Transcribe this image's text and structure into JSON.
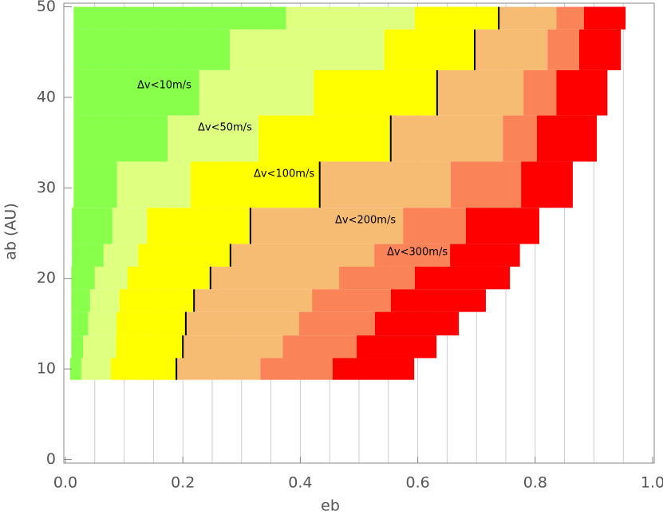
{
  "chart_data": {
    "type": "range-bars",
    "x_label": "eb",
    "y_label": "ab (AU)",
    "xlim": [
      0,
      1
    ],
    "ylim": [
      -0.4,
      50.4
    ],
    "xticks": [
      {
        "value": 0,
        "label": "0.0"
      },
      {
        "value": 0.2,
        "label": "0.2"
      },
      {
        "value": 0.4,
        "label": "0.4"
      },
      {
        "value": 0.6,
        "label": "0.6"
      },
      {
        "value": 0.8,
        "label": "0.8"
      },
      {
        "value": 1,
        "label": "1.0"
      }
    ],
    "xgrid": [
      0.05,
      0.1,
      0.15,
      0.2,
      0.25,
      0.3,
      0.35,
      0.4,
      0.45,
      0.5,
      0.55,
      0.6,
      0.65,
      0.7,
      0.75,
      0.8,
      0.85,
      0.9,
      0.95
    ],
    "yticks": [
      0,
      10,
      20,
      30,
      40,
      50
    ],
    "ab_ranges": [
      [
        47.5,
        50
      ],
      [
        43,
        47.5
      ],
      [
        38,
        43
      ],
      [
        32.9,
        38
      ],
      [
        27.8,
        32.9
      ],
      [
        23.8,
        27.8
      ],
      [
        21.3,
        23.8
      ],
      [
        18.8,
        21.3
      ],
      [
        16.3,
        18.8
      ],
      [
        13.7,
        16.3
      ],
      [
        11.2,
        13.7
      ],
      [
        8.8,
        11.2
      ]
    ],
    "start": [
      0.014,
      0.014,
      0.014,
      0.014,
      0.014,
      0.011,
      0.011,
      0.01,
      0.01,
      0.01,
      0.01,
      0.008
    ],
    "series": [
      {
        "color": "#88ff4a",
        "values": [
          0.376,
          0.28,
          0.228,
          0.174,
          0.088,
          0.08,
          0.065,
          0.05,
          0.042,
          0.039,
          0.03,
          0.027
        ]
      },
      {
        "color": "#dfff80",
        "values": [
          0.595,
          0.543,
          0.423,
          0.329,
          0.213,
          0.139,
          0.124,
          0.106,
          0.092,
          0.087,
          0.086,
          0.077
        ]
      },
      {
        "color": "#ffff00",
        "values": [
          0.738,
          0.697,
          0.633,
          0.554,
          0.433,
          0.315,
          0.281,
          0.247,
          0.219,
          0.205,
          0.2,
          0.189
        ]
      },
      {
        "color": "#f7bc74",
        "values": [
          0.836,
          0.821,
          0.78,
          0.745,
          0.656,
          0.575,
          0.526,
          0.466,
          0.42,
          0.398,
          0.37,
          0.332
        ]
      },
      {
        "color": "#fb8358",
        "values": [
          0.883,
          0.875,
          0.836,
          0.803,
          0.776,
          0.682,
          0.655,
          0.595,
          0.554,
          0.527,
          0.496,
          0.455
        ]
      },
      {
        "color": "#ff0000",
        "values": [
          0.954,
          0.946,
          0.923,
          0.905,
          0.864,
          0.807,
          0.774,
          0.757,
          0.716,
          0.67,
          0.632,
          0.594
        ]
      }
    ],
    "annotations": [
      "Δv<10m/s",
      "Δv<50m/s",
      "Δv<100m/s",
      "Δv<200m/s",
      "Δv<300m/s"
    ]
  }
}
